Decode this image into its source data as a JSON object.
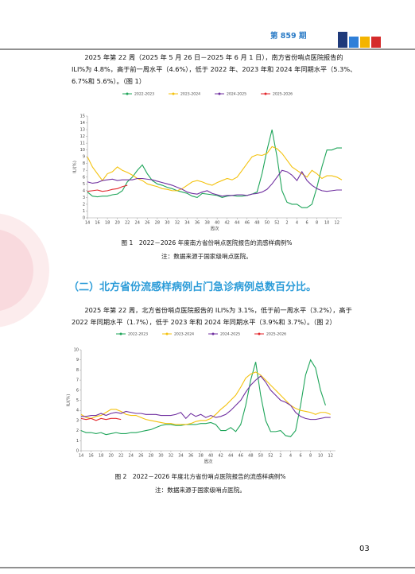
{
  "header": {
    "issue": "第 859 期"
  },
  "paragraph_1": "2025 年第 22 周（2025 年 5 月 26 日－2025 年 6 月 1 日），南方省份哨点医院报告的 ILI%为 4.8%，高于前一周水平（4.6%），低于 2022 年、2023 年和 2024 年同期水平（5.3%、6.7%和 5.6%）。（图 1）",
  "caption_1": "图 1　2022－2026 年度南方省份哨点医院报告的流感样病例%",
  "note_1": "注：数据来源于国家级哨点医院。",
  "heading_2": "（二）北方省份流感样病例占门急诊病例总数百分比。",
  "paragraph_2": "2025 年第 22 周，北方省份哨点医院报告的 ILI%为 3.1%，低于前一周水平（3.2%），高于 2022 年同期水平（1.7%），低于 2023 年和 2024 年同期水平（3.9%和 3.7%）。（图 2）",
  "caption_2": "图 2　2022－2026 年度北方省份哨点医院报告的流感样病例%",
  "note_2": "注：数据来源于国家级哨点医院。",
  "page_number": "03",
  "chart_data": [
    {
      "type": "line",
      "xlabel": "周次",
      "ylabel": "ILI(%)",
      "legend": "top",
      "ylim": [
        0,
        15
      ],
      "yticks": [
        0,
        1,
        2,
        3,
        4,
        5,
        6,
        7,
        8,
        9,
        10,
        11,
        12,
        13,
        14,
        15
      ],
      "categories": [
        "14",
        null,
        "16",
        null,
        "18",
        null,
        "20",
        null,
        "22",
        null,
        "24",
        null,
        "26",
        null,
        "28",
        null,
        "30",
        null,
        "32",
        null,
        "34",
        null,
        "36",
        null,
        "38",
        null,
        "40",
        null,
        "42",
        null,
        "44",
        null,
        "46",
        null,
        "48",
        null,
        "50",
        null,
        "52",
        null,
        "2",
        null,
        "4",
        null,
        "6",
        null,
        "8",
        null,
        "10",
        null,
        "12",
        null
      ],
      "series": [
        {
          "name": "2022-2023",
          "color": "#1fa55a",
          "values": [
            3.8,
            3.2,
            3.1,
            3.2,
            3.2,
            3.4,
            3.5,
            4.0,
            5.3,
            6.0,
            7.0,
            7.8,
            6.5,
            5.5,
            5.0,
            4.8,
            4.5,
            4.3,
            4.0,
            3.8,
            3.6,
            3.2,
            3.0,
            3.6,
            3.5,
            3.4,
            3.3,
            3.0,
            3.2,
            3.3,
            3.2,
            3.2,
            3.3,
            3.5,
            3.8,
            6.5,
            10.0,
            13.0,
            9.0,
            4.0,
            2.3,
            2.0,
            2.0,
            1.5,
            1.5,
            2.0,
            4.5,
            7.5,
            10.0,
            10.0,
            10.3,
            10.3
          ]
        },
        {
          "name": "2023-2024",
          "color": "#f4c20d",
          "values": [
            9.0,
            7.5,
            6.5,
            5.5,
            6.5,
            6.8,
            7.5,
            7.0,
            6.7,
            6.3,
            5.8,
            5.5,
            5.0,
            4.8,
            4.6,
            4.3,
            4.2,
            4.0,
            4.0,
            4.3,
            4.8,
            5.3,
            5.5,
            5.3,
            5.0,
            4.8,
            5.2,
            5.5,
            5.8,
            5.6,
            6.0,
            7.0,
            8.0,
            9.0,
            9.3,
            9.2,
            9.5,
            10.5,
            10.2,
            9.5,
            8.5,
            7.5,
            7.0,
            6.5,
            6.0,
            7.0,
            6.5,
            5.8,
            6.2,
            6.2,
            6.0,
            5.6
          ]
        },
        {
          "name": "2024-2025",
          "color": "#7030a0",
          "values": [
            5.3,
            5.1,
            5.2,
            5.5,
            5.6,
            5.7,
            5.5,
            5.6,
            5.6,
            5.6,
            5.8,
            5.8,
            5.7,
            5.6,
            5.4,
            5.2,
            5.0,
            4.8,
            4.5,
            4.2,
            3.8,
            3.6,
            3.5,
            3.8,
            4.0,
            3.6,
            3.4,
            3.2,
            3.3,
            3.3,
            3.4,
            3.4,
            3.3,
            3.5,
            3.6,
            3.8,
            4.2,
            5.0,
            6.0,
            7.0,
            6.8,
            6.3,
            5.5,
            6.8,
            5.5,
            4.8,
            4.3,
            4.0,
            3.9,
            4.0,
            4.1,
            4.1
          ]
        },
        {
          "name": "2025-2026",
          "color": "#e3262b",
          "values": [
            3.9,
            4.0,
            4.1,
            3.9,
            4.0,
            4.2,
            4.3,
            4.6,
            4.8,
            null,
            null,
            null,
            null,
            null,
            null,
            null,
            null,
            null,
            null,
            null,
            null,
            null,
            null,
            null,
            null,
            null,
            null,
            null,
            null,
            null,
            null,
            null,
            null,
            null,
            null,
            null,
            null,
            null,
            null,
            null,
            null,
            null,
            null,
            null,
            null,
            null,
            null,
            null,
            null,
            null,
            null,
            null
          ]
        }
      ]
    },
    {
      "type": "line",
      "xlabel": "周次",
      "ylabel": "ILI(%)",
      "legend": "top",
      "ylim": [
        0,
        10
      ],
      "yticks": [
        0,
        1,
        2,
        3,
        4,
        5,
        6,
        7,
        8,
        9,
        10
      ],
      "categories": [
        "14",
        null,
        "16",
        null,
        "18",
        null,
        "20",
        null,
        "22",
        null,
        "24",
        null,
        "26",
        null,
        "28",
        null,
        "30",
        null,
        "32",
        null,
        "34",
        null,
        "36",
        null,
        "38",
        null,
        "40",
        null,
        "42",
        null,
        "44",
        null,
        "46",
        null,
        "48",
        null,
        "50",
        null,
        "52",
        null,
        "2",
        null,
        "4",
        null,
        "6",
        null,
        "8",
        null,
        "10",
        null,
        "12",
        null
      ],
      "series": [
        {
          "name": "2022-2023",
          "color": "#1fa55a",
          "values": [
            2.0,
            1.8,
            1.8,
            1.7,
            1.8,
            1.6,
            1.7,
            1.8,
            1.7,
            1.7,
            1.8,
            1.8,
            1.9,
            2.0,
            2.1,
            2.3,
            2.5,
            2.6,
            2.6,
            2.5,
            2.5,
            2.6,
            2.6,
            2.6,
            2.7,
            2.7,
            2.8,
            2.6,
            2.0,
            2.0,
            2.3,
            1.9,
            2.6,
            4.5,
            7.0,
            8.8,
            5.5,
            3.0,
            1.9,
            1.9,
            2.0,
            1.5,
            1.4,
            2.0,
            4.5,
            7.5,
            9.0,
            8.2,
            6.0,
            4.5,
            null,
            null
          ]
        },
        {
          "name": "2023-2024",
          "color": "#f4c20d",
          "values": [
            3.6,
            3.3,
            3.2,
            3.4,
            3.5,
            3.8,
            4.1,
            4.1,
            3.9,
            3.6,
            3.5,
            3.5,
            3.3,
            3.1,
            3.0,
            2.9,
            2.8,
            2.7,
            2.7,
            2.6,
            2.6,
            2.6,
            2.7,
            2.9,
            3.0,
            3.0,
            3.2,
            3.6,
            4.1,
            4.5,
            5.0,
            5.5,
            6.3,
            7.2,
            7.6,
            7.8,
            7.5,
            7.0,
            6.5,
            6.0,
            5.5,
            5.0,
            4.5,
            4.2,
            4.0,
            3.9,
            3.8,
            3.6,
            3.8,
            3.8,
            3.6,
            null
          ]
        },
        {
          "name": "2024-2025",
          "color": "#7030a0",
          "values": [
            3.4,
            3.4,
            3.5,
            3.5,
            3.7,
            3.5,
            3.7,
            3.8,
            3.7,
            3.9,
            3.8,
            3.7,
            3.7,
            3.6,
            3.6,
            3.6,
            3.5,
            3.5,
            3.5,
            3.6,
            3.8,
            3.2,
            3.7,
            3.4,
            3.6,
            3.3,
            3.5,
            3.3,
            3.4,
            3.6,
            4.0,
            4.5,
            5.0,
            5.8,
            6.5,
            7.0,
            7.4,
            6.8,
            6.0,
            5.5,
            5.0,
            4.8,
            4.5,
            3.8,
            3.4,
            3.2,
            3.1,
            3.1,
            3.2,
            3.3,
            3.3,
            null
          ]
        },
        {
          "name": "2025-2026",
          "color": "#e3262b",
          "values": [
            3.2,
            3.1,
            3.2,
            3.0,
            3.2,
            3.1,
            3.2,
            3.2,
            3.1,
            null,
            null,
            null,
            null,
            null,
            null,
            null,
            null,
            null,
            null,
            null,
            null,
            null,
            null,
            null,
            null,
            null,
            null,
            null,
            null,
            null,
            null,
            null,
            null,
            null,
            null,
            null,
            null,
            null,
            null,
            null,
            null,
            null,
            null,
            null,
            null,
            null,
            null,
            null,
            null,
            null,
            null,
            null
          ]
        }
      ]
    }
  ]
}
